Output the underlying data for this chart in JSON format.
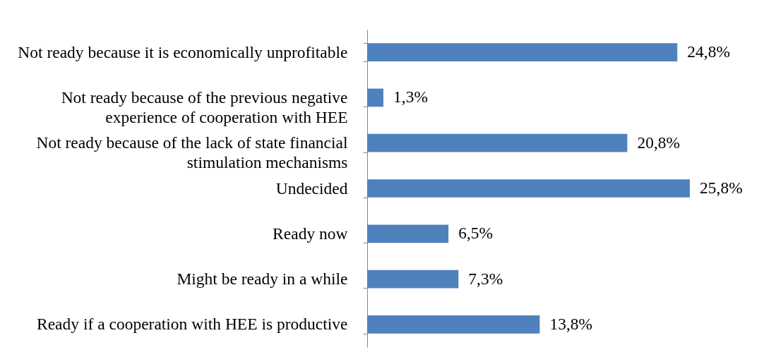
{
  "chart_data": {
    "type": "bar",
    "orientation": "horizontal",
    "categories": [
      "Not ready because it is economically unprofitable",
      "Not ready because of the previous negative experience of cooperation with HEE",
      "Not ready because of the lack of state financial stimulation mechanisms",
      "Undecided",
      "Ready now",
      "Might be ready in a while",
      "Ready if a cooperation with HEE is productive"
    ],
    "values": [
      24.8,
      1.3,
      20.8,
      25.8,
      6.5,
      7.3,
      13.8
    ],
    "value_labels": [
      "24,8%",
      "1,3%",
      "20,8%",
      "25,8%",
      "6,5%",
      "7,3%",
      "13,8%"
    ],
    "color": "#4f81bd",
    "grid": false
  }
}
